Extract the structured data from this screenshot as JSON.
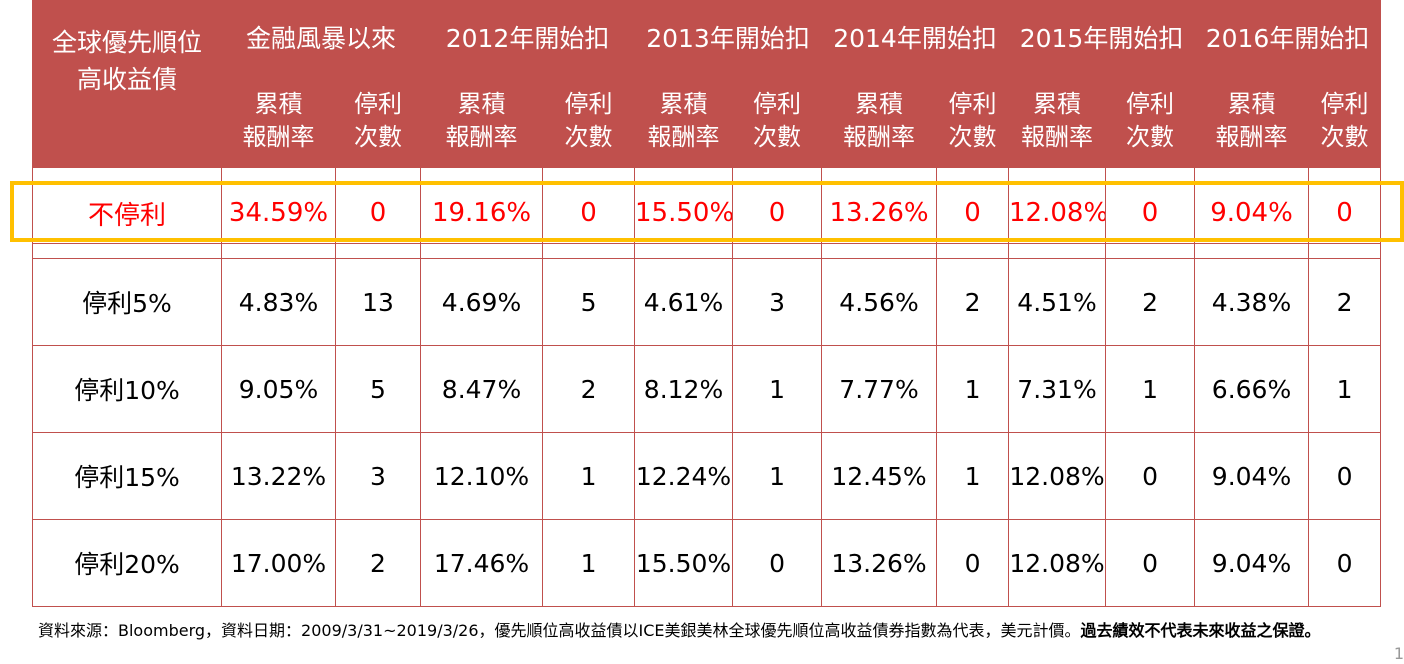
{
  "header": {
    "corner": "全球優先順位高收益債",
    "groups": [
      "金融風暴以來",
      "2012年開始扣",
      "2013年開始扣",
      "2014年開始扣",
      "2015年開始扣",
      "2016年開始扣"
    ],
    "sub_return": "累積報酬率",
    "sub_count": "停利次數"
  },
  "rows": [
    {
      "label": "不停利",
      "cells": [
        "34.59%",
        "0",
        "19.16%",
        "0",
        "15.50%",
        "0",
        "13.26%",
        "0",
        "12.08%",
        "0",
        "9.04%",
        "0"
      ]
    },
    {
      "label": "停利5%",
      "cells": [
        "4.83%",
        "13",
        "4.69%",
        "5",
        "4.61%",
        "3",
        "4.56%",
        "2",
        "4.51%",
        "2",
        "4.38%",
        "2"
      ]
    },
    {
      "label": "停利10%",
      "cells": [
        "9.05%",
        "5",
        "8.47%",
        "2",
        "8.12%",
        "1",
        "7.77%",
        "1",
        "7.31%",
        "1",
        "6.66%",
        "1"
      ]
    },
    {
      "label": "停利15%",
      "cells": [
        "13.22%",
        "3",
        "12.10%",
        "1",
        "12.24%",
        "1",
        "12.45%",
        "1",
        "12.08%",
        "0",
        "9.04%",
        "0"
      ]
    },
    {
      "label": "停利20%",
      "cells": [
        "17.00%",
        "2",
        "17.46%",
        "1",
        "15.50%",
        "0",
        "13.26%",
        "0",
        "12.08%",
        "0",
        "9.04%",
        "0"
      ]
    }
  ],
  "footnote": {
    "normal": "資料來源：Bloomberg，資料日期：2009/3/31~2019/3/26，優先順位高收益債以ICE美銀美林全球優先順位高收益債券指數為代表，美元計價。",
    "bold": "過去績效不代表未來收益之保證。"
  },
  "page_number": "1",
  "colors": {
    "header_bg": "#c0504d",
    "highlight_border": "#ffc000",
    "highlight_text": "#ff0000"
  }
}
